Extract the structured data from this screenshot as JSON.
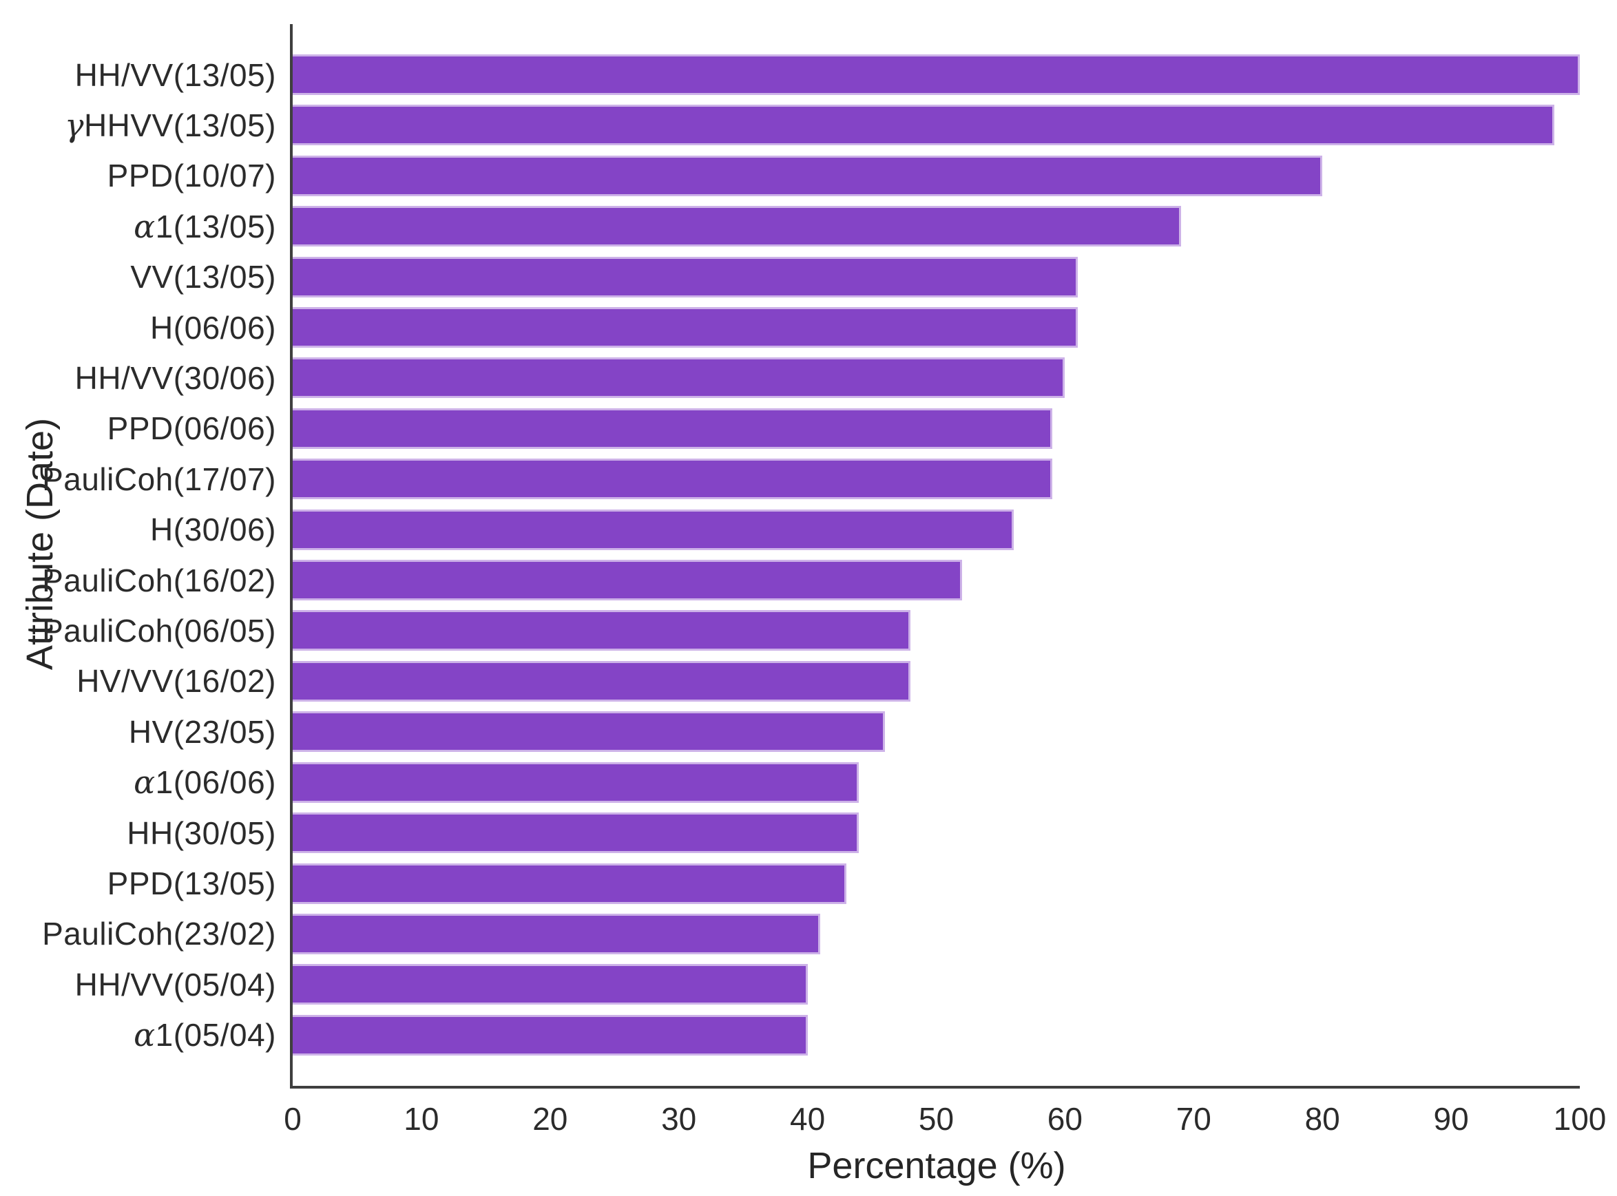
{
  "chart_data": {
    "type": "bar",
    "orientation": "horizontal",
    "title": "",
    "xlabel": "Percentage (%)",
    "ylabel": "Attribute (Date)",
    "xlim": [
      0,
      100
    ],
    "x_ticks": [
      0,
      10,
      20,
      30,
      40,
      50,
      60,
      70,
      80,
      90,
      100
    ],
    "grid": false,
    "legend": "none",
    "bar_color": "#8444c6",
    "bar_edge_color": "#cdb2e8",
    "axis_color": "#3f3f3f",
    "text_color": "#2b2b2b",
    "categories": [
      "HH/VV(13/05)",
      "γHHVV(13/05)",
      "PPD(10/07)",
      "α1(13/05)",
      "VV(13/05)",
      "H(06/06)",
      "HH/VV(30/06)",
      "PPD(06/06)",
      "PauliCoh(17/07)",
      "H(30/06)",
      "PauliCoh(16/02)",
      "PauliCoh(06/05)",
      "HV/VV(16/02)",
      "HV(23/05)",
      "α1(06/06)",
      "HH(30/05)",
      "PPD(13/05)",
      "PauliCoh(23/02)",
      "HH/VV(05/04)",
      "α1(05/04)"
    ],
    "values": [
      100,
      98,
      80,
      69,
      61,
      61,
      60,
      59,
      59,
      56,
      52,
      48,
      48,
      46,
      44,
      44,
      43,
      41,
      40,
      40
    ]
  }
}
